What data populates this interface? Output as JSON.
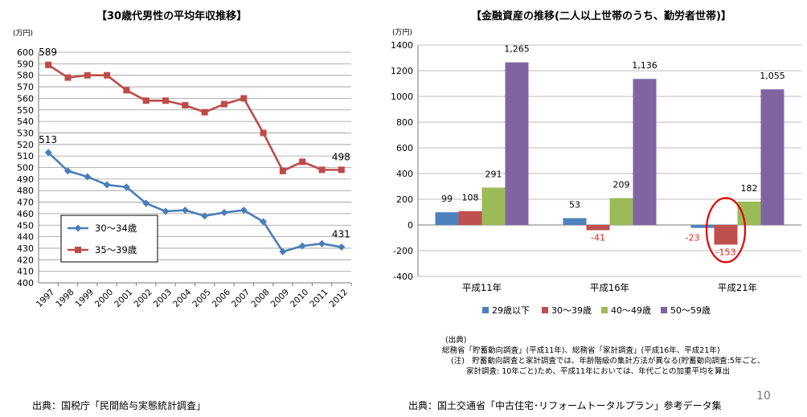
{
  "slide": {
    "page_number": "10"
  },
  "left": {
    "title": "【30歳代男性の平均年収推移】",
    "source": "出典：国税庁「民間給与実態統計調査」"
  },
  "right": {
    "title": "【金融資産の推移(二人以上世帯のうち、勤労者世帯)】",
    "source": "出典：国土交通省「中古住宅･リフォームトータルプラン」参考データ集",
    "notes": {
      "header": "(出典)",
      "line1": "総務省「貯蓄動向調査」(平成11年)、総務省「家計調査」(平成16年、平成21年)",
      "line2": "(注)　貯蓄動向調査と家計調査では、年齢階級の集計方法が異なる(貯蓄動向調査:5年ごと、",
      "line3": "家計調査: 10年ごと)ため、平成11年においては、年代ごとの加重平均を算出"
    }
  },
  "chart_data": [
    {
      "type": "line",
      "title": "【30歳代男性の平均年収推移】",
      "ylabel": "(万円)",
      "ylim": [
        400,
        600
      ],
      "ytick_step": 10,
      "grid": true,
      "legend_position": "left-middle",
      "x": [
        "1997",
        "1998",
        "1999",
        "2000",
        "2001",
        "2002",
        "2003",
        "2004",
        "2005",
        "2006",
        "2007",
        "2008",
        "2009",
        "2010",
        "2011",
        "2012"
      ],
      "series": [
        {
          "name": "30～34歳",
          "color": "#4A7EBB",
          "marker": "diamond",
          "values": [
            513,
            497,
            492,
            485,
            483,
            469,
            462,
            463,
            458,
            461,
            463,
            453,
            427,
            432,
            434,
            431
          ],
          "labels": [
            {
              "index": 0,
              "text": "513"
            },
            {
              "index": 15,
              "text": "431"
            }
          ]
        },
        {
          "name": "35～39歳",
          "color": "#BE4B48",
          "marker": "square",
          "values": [
            589,
            578,
            580,
            580,
            567,
            558,
            558,
            554,
            548,
            555,
            560,
            530,
            497,
            505,
            498,
            498
          ],
          "labels": [
            {
              "index": 0,
              "text": "589"
            },
            {
              "index": 15,
              "text": "498"
            }
          ]
        }
      ]
    },
    {
      "type": "bar",
      "title": "【金融資産の推移(二人以上世帯のうち、勤労者世帯)】",
      "ylabel": "(万円)",
      "ylim": [
        -400,
        1400
      ],
      "ytick_step": 200,
      "grid": true,
      "legend_position": "bottom",
      "categories": [
        "平成11年",
        "平成16年",
        "平成21年"
      ],
      "series": [
        {
          "name": "29歳以下",
          "color": "#4F81BD",
          "values": [
            99,
            53,
            -23
          ],
          "labels": [
            "99",
            "53",
            "-23"
          ]
        },
        {
          "name": "30～39歳",
          "color": "#C0504D",
          "values": [
            108,
            -41,
            -153
          ],
          "labels": [
            "108",
            "-41",
            "-153"
          ]
        },
        {
          "name": "40～49歳",
          "color": "#9BBB59",
          "values": [
            291,
            209,
            182
          ],
          "labels": [
            "291",
            "209",
            "182"
          ]
        },
        {
          "name": "50～59歳",
          "color": "#8064A2",
          "values": [
            1265,
            1136,
            1055
          ],
          "labels": [
            "1,265",
            "1,136",
            "1,055"
          ]
        }
      ],
      "negative_label_color": "#E8221B",
      "annotation": {
        "type": "ellipse-highlight",
        "target": "平成21年 30～39歳 -153",
        "color": "#E00000"
      }
    }
  ]
}
